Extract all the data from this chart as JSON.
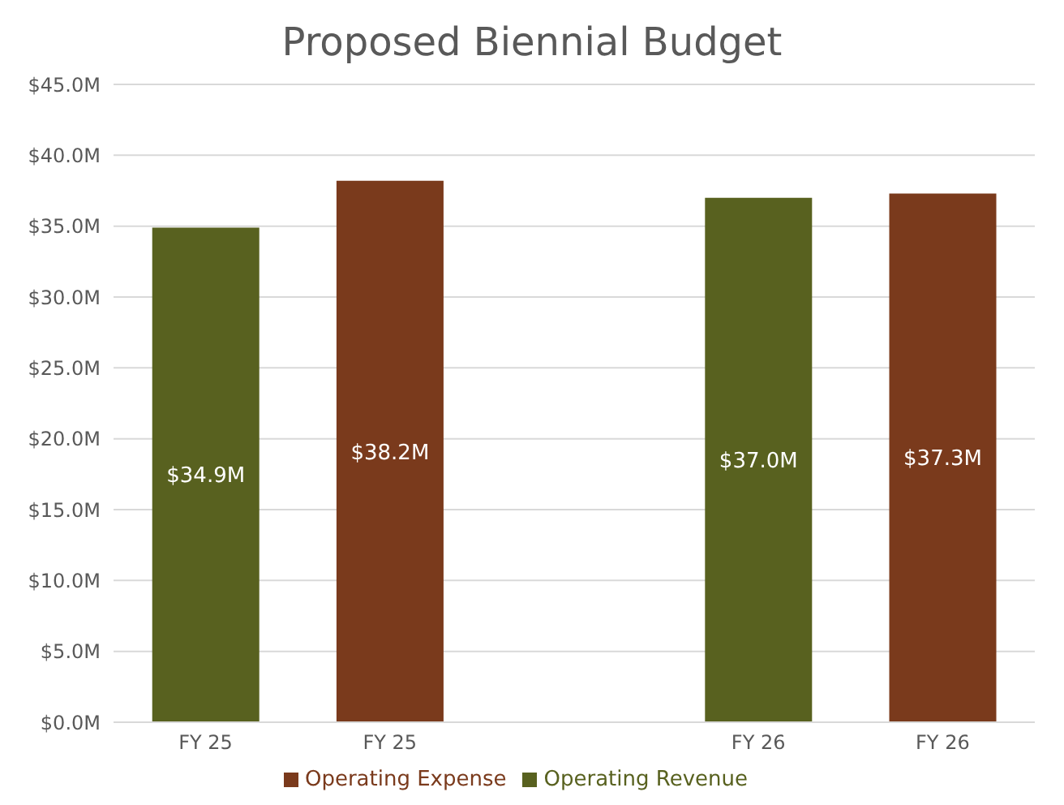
{
  "chart_data": {
    "type": "bar",
    "title": "Proposed Biennial Budget",
    "categories": [
      "FY 25",
      "FY 25",
      null,
      "FY 26",
      "FY 26"
    ],
    "stacked": true,
    "series": [
      {
        "name": "Operating Revenue",
        "color": "#58611f",
        "values": [
          34.9,
          null,
          null,
          37.0,
          null
        ],
        "value_labels": [
          "$34.9M",
          null,
          null,
          "$37.0M",
          null
        ]
      },
      {
        "name": "Operating Expense",
        "color": "#7a3a1c",
        "values": [
          null,
          38.2,
          null,
          null,
          37.3
        ],
        "value_labels": [
          null,
          "$38.2M",
          null,
          null,
          "$37.3M"
        ]
      }
    ],
    "ylim": [
      0,
      45
    ],
    "yticks": [
      {
        "value": 0,
        "label": "$0.0M"
      },
      {
        "value": 5,
        "label": "$5.0M"
      },
      {
        "value": 10,
        "label": "$10.0M"
      },
      {
        "value": 15,
        "label": "$15.0M"
      },
      {
        "value": 20,
        "label": "$20.0M"
      },
      {
        "value": 25,
        "label": "$25.0M"
      },
      {
        "value": 30,
        "label": "$30.0M"
      },
      {
        "value": 35,
        "label": "$35.0M"
      },
      {
        "value": 40,
        "label": "$40.0M"
      },
      {
        "value": 45,
        "label": "$45.0M"
      }
    ],
    "grid": "y",
    "legend": "bottom"
  }
}
